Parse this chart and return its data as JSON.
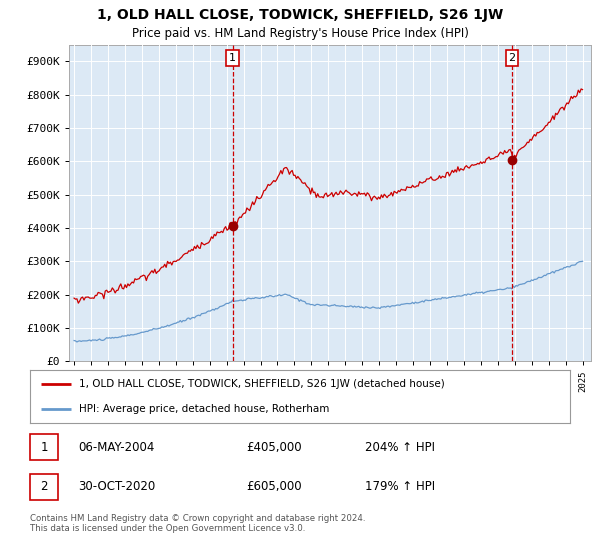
{
  "title": "1, OLD HALL CLOSE, TODWICK, SHEFFIELD, S26 1JW",
  "subtitle": "Price paid vs. HM Land Registry's House Price Index (HPI)",
  "bg_color": "#dce9f5",
  "red_line_color": "#cc0000",
  "blue_line_color": "#6699cc",
  "marker_color": "#990000",
  "dashed_color": "#cc0000",
  "ylim": [
    0,
    950000
  ],
  "yticks": [
    0,
    100000,
    200000,
    300000,
    400000,
    500000,
    600000,
    700000,
    800000,
    900000
  ],
  "ytick_labels": [
    "£0",
    "£100K",
    "£200K",
    "£300K",
    "£400K",
    "£500K",
    "£600K",
    "£700K",
    "£800K",
    "£900K"
  ],
  "sale1_date": 2004.35,
  "sale1_price": 405000,
  "sale1_label": "1",
  "sale2_date": 2020.83,
  "sale2_price": 605000,
  "sale2_label": "2",
  "legend_red": "1, OLD HALL CLOSE, TODWICK, SHEFFIELD, S26 1JW (detached house)",
  "legend_blue": "HPI: Average price, detached house, Rotherham",
  "note1_num": "1",
  "note1_date": "06-MAY-2004",
  "note1_price": "£405,000",
  "note1_hpi": "204% ↑ HPI",
  "note2_num": "2",
  "note2_date": "30-OCT-2020",
  "note2_price": "£605,000",
  "note2_hpi": "179% ↑ HPI",
  "footer": "Contains HM Land Registry data © Crown copyright and database right 2024.\nThis data is licensed under the Open Government Licence v3.0."
}
